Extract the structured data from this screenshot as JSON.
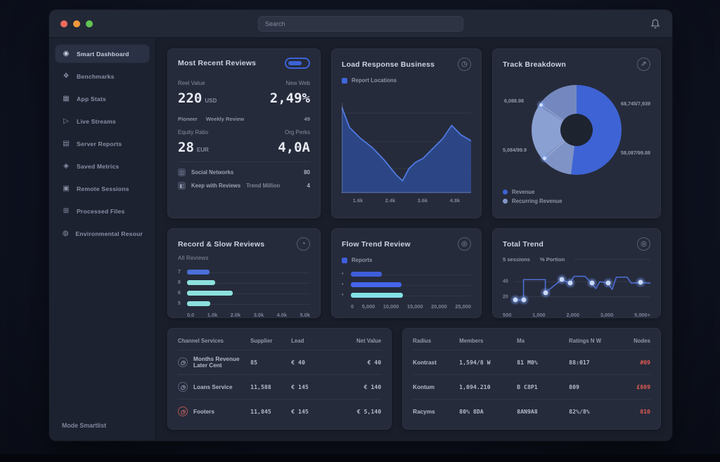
{
  "app": {
    "search_placeholder": "Search",
    "sidebar_footer": "Mode Smartlist"
  },
  "sidebar": {
    "items": [
      {
        "label": "Smart Dashboard",
        "glyph": "◉",
        "icon": "gauge-icon",
        "active": true
      },
      {
        "label": "Benchmarks",
        "glyph": "❖",
        "icon": "layers-icon"
      },
      {
        "label": "App Stats",
        "glyph": "▦",
        "icon": "grid-icon"
      },
      {
        "label": "Live Streams",
        "glyph": "▷",
        "icon": "play-icon"
      },
      {
        "label": "Server Reports",
        "glyph": "▤",
        "icon": "report-icon"
      },
      {
        "label": "Saved Metrics",
        "glyph": "◈",
        "icon": "metrics-icon"
      },
      {
        "label": "Remote Sessions",
        "glyph": "▣",
        "icon": "monitor-icon"
      },
      {
        "label": "Processed Files",
        "glyph": "⊞",
        "icon": "files-icon"
      },
      {
        "label": "Environmental Resources",
        "glyph": "◍",
        "icon": "globe-icon"
      }
    ]
  },
  "cards": {
    "reviews": {
      "title": "Most Recent Reviews",
      "stat1_label": "Reel Value",
      "stat1_value": "220",
      "stat1_unit": "USD",
      "stat2_label": "New Web",
      "stat2_value": "2,49%",
      "meta1": "Pioneer",
      "meta2": "Weekly Review",
      "meta3": "49",
      "stat3_label": "Equity Ratio",
      "stat3_value": "28",
      "stat3_unit": "EUR",
      "stat4_label": "Org Perks",
      "stat4_value": "4,0A",
      "row1_icon": "◫",
      "row1_label": "Social Networks",
      "row1_value": "80",
      "row2_icon": "◧",
      "row2_label": "Keep with Reviews",
      "row2_sub": "Trend Million",
      "row2_value": "4"
    },
    "business": {
      "title": "Load Response Business",
      "icon_glyph": "◷",
      "legend": "Report Locations",
      "legend_color": "#3f66d8"
    },
    "breakdown": {
      "title": "Track Breakdown",
      "icon_glyph": "⇗",
      "label_top_left": "6,088.98",
      "label_top_right": "68,745/7,939",
      "label_bottom_left": "5,084/99.9",
      "label_bottom_right": "58,087/99.88",
      "legend1": "Revenue",
      "legend1_color": "#3e63d4",
      "legend2": "Recurring Revenue",
      "legend2_color": "#8497c9"
    },
    "records": {
      "title": "Record & Slow Reviews",
      "icon_glyph": "◔",
      "sublabel": "All Reviews"
    },
    "flow": {
      "title": "Flow Trend Review",
      "icon_glyph": "◎",
      "legend": "Reports",
      "legend_color": "#3f5edb"
    },
    "trend": {
      "title": "Total Trend",
      "icon_glyph": "◎",
      "legend1": "5 sessions",
      "legend2": "% Portion"
    }
  },
  "tables": {
    "left": {
      "headers": [
        "Channel Services",
        "Supplier",
        "Lead",
        "Net Value"
      ],
      "rows": [
        {
          "icon_glyph": "◷",
          "name": "Months Revenue Later Cent",
          "supplier": "85",
          "lead": "€ 40",
          "net": "€ 40"
        },
        {
          "icon_glyph": "◷",
          "name": "Loans Service",
          "supplier": "11,588",
          "lead": "€ 145",
          "net": "€ 140"
        },
        {
          "icon_glyph": "◷",
          "name": "Footers",
          "supplier": "11,845",
          "lead": "€ 145",
          "net": "€ 5,140"
        }
      ]
    },
    "right": {
      "headers": [
        "Radius",
        "Members",
        "Ma",
        "Ratings N W",
        "Nodes"
      ],
      "rows": [
        {
          "c1": "Kontrast",
          "c2": "1,594/8 W",
          "c3": "81 M0%",
          "c4": "88:017",
          "c5": "#09"
        },
        {
          "c1": "Kontum",
          "c2": "1,094.210",
          "c3": "B C8P1",
          "c4": "809",
          "c5": "£809"
        },
        {
          "c1": "Racyms",
          "c2": "80% 8DA",
          "c3": "8AN9A8",
          "c4": "82%/8%",
          "c5": "810"
        }
      ]
    }
  },
  "colors": {
    "accent_blue": "#3e63d4",
    "accent_teal": "#8ce0dd",
    "status_red": "#e05b52"
  },
  "chart_data": [
    {
      "id": "business-area",
      "type": "area",
      "title": "Load Response Business",
      "x": [
        0,
        6,
        14,
        24,
        33,
        42,
        47,
        52,
        57,
        63,
        70,
        78,
        85,
        92,
        100
      ],
      "y": [
        84,
        64,
        54,
        44,
        32,
        18,
        12,
        24,
        30,
        34,
        43,
        53,
        66,
        57,
        51
      ],
      "ylim": [
        0,
        100
      ],
      "x_ticks": [
        "1.6k",
        "2.4k",
        "3.6k",
        "4.8k"
      ],
      "line_color": "#5079e2",
      "fill_color": "#2e4a8f",
      "grid": true,
      "legend_position": "top-left"
    },
    {
      "id": "breakdown-donut",
      "type": "pie",
      "title": "Track Breakdown",
      "segments": [
        {
          "label": "Revenue",
          "value": 52,
          "color": "#3e63d4"
        },
        {
          "label": "Recurring Revenue",
          "value": 12,
          "color": "#7f93c6"
        },
        {
          "label": "Recurring Revenue",
          "value": 20,
          "color": "#8ba0d2"
        },
        {
          "label": "Revenue",
          "value": 16,
          "color": "#7488bf"
        }
      ],
      "callouts": [
        "6,088.98",
        "68,745/7,939",
        "5,084/99.9",
        "58,087/99.88"
      ]
    },
    {
      "id": "records-bars",
      "type": "bar",
      "title": "Record & Slow Reviews",
      "categories": [
        "7",
        "8",
        "6",
        "5"
      ],
      "values": [
        18,
        23,
        37,
        19
      ],
      "xlim": [
        0,
        100
      ],
      "colors": [
        "#4a6fd8",
        "#8ce0dd",
        "#8ce0dd",
        "#8ce0dd"
      ],
      "x_ticks": [
        "0.0",
        "1.0k",
        "2.0k",
        "3.0k",
        "4.0k",
        "5.0k"
      ]
    },
    {
      "id": "flow-bars",
      "type": "bar",
      "title": "Flow Trend Review",
      "categories": [
        "•",
        "•",
        "•"
      ],
      "values": [
        26,
        42,
        43
      ],
      "xlim": [
        0,
        100
      ],
      "colors": [
        "#3f5edb",
        "#4466ec",
        "#82e2e6"
      ],
      "x_ticks": [
        "0",
        "5,000",
        "10,000",
        "15,000",
        "20,000",
        "25,000"
      ]
    },
    {
      "id": "trend-step",
      "type": "line",
      "title": "Total Trend",
      "points": [
        [
          1,
          78
        ],
        [
          7,
          78
        ],
        [
          7,
          28
        ],
        [
          23,
          28
        ],
        [
          23,
          60
        ],
        [
          35,
          28
        ],
        [
          41,
          37
        ],
        [
          44,
          20
        ],
        [
          52,
          20
        ],
        [
          57,
          37
        ],
        [
          60,
          50
        ],
        [
          63,
          33
        ],
        [
          69,
          37
        ],
        [
          72,
          52
        ],
        [
          75,
          22
        ],
        [
          83,
          22
        ],
        [
          86,
          37
        ],
        [
          93,
          35
        ],
        [
          100,
          37
        ]
      ],
      "dots": [
        [
          1,
          78
        ],
        [
          7,
          78
        ],
        [
          23,
          60
        ],
        [
          35,
          28
        ],
        [
          41,
          37
        ],
        [
          57,
          37
        ],
        [
          69,
          37
        ],
        [
          93,
          35
        ]
      ],
      "y_ticks": [
        {
          "label": "40",
          "y": 33
        },
        {
          "label": "20",
          "y": 70
        }
      ],
      "x_ticks": [
        "500",
        "1,000",
        "2,000",
        "3,000",
        "5,000+"
      ],
      "line_color": "#4d6fd4"
    }
  ]
}
